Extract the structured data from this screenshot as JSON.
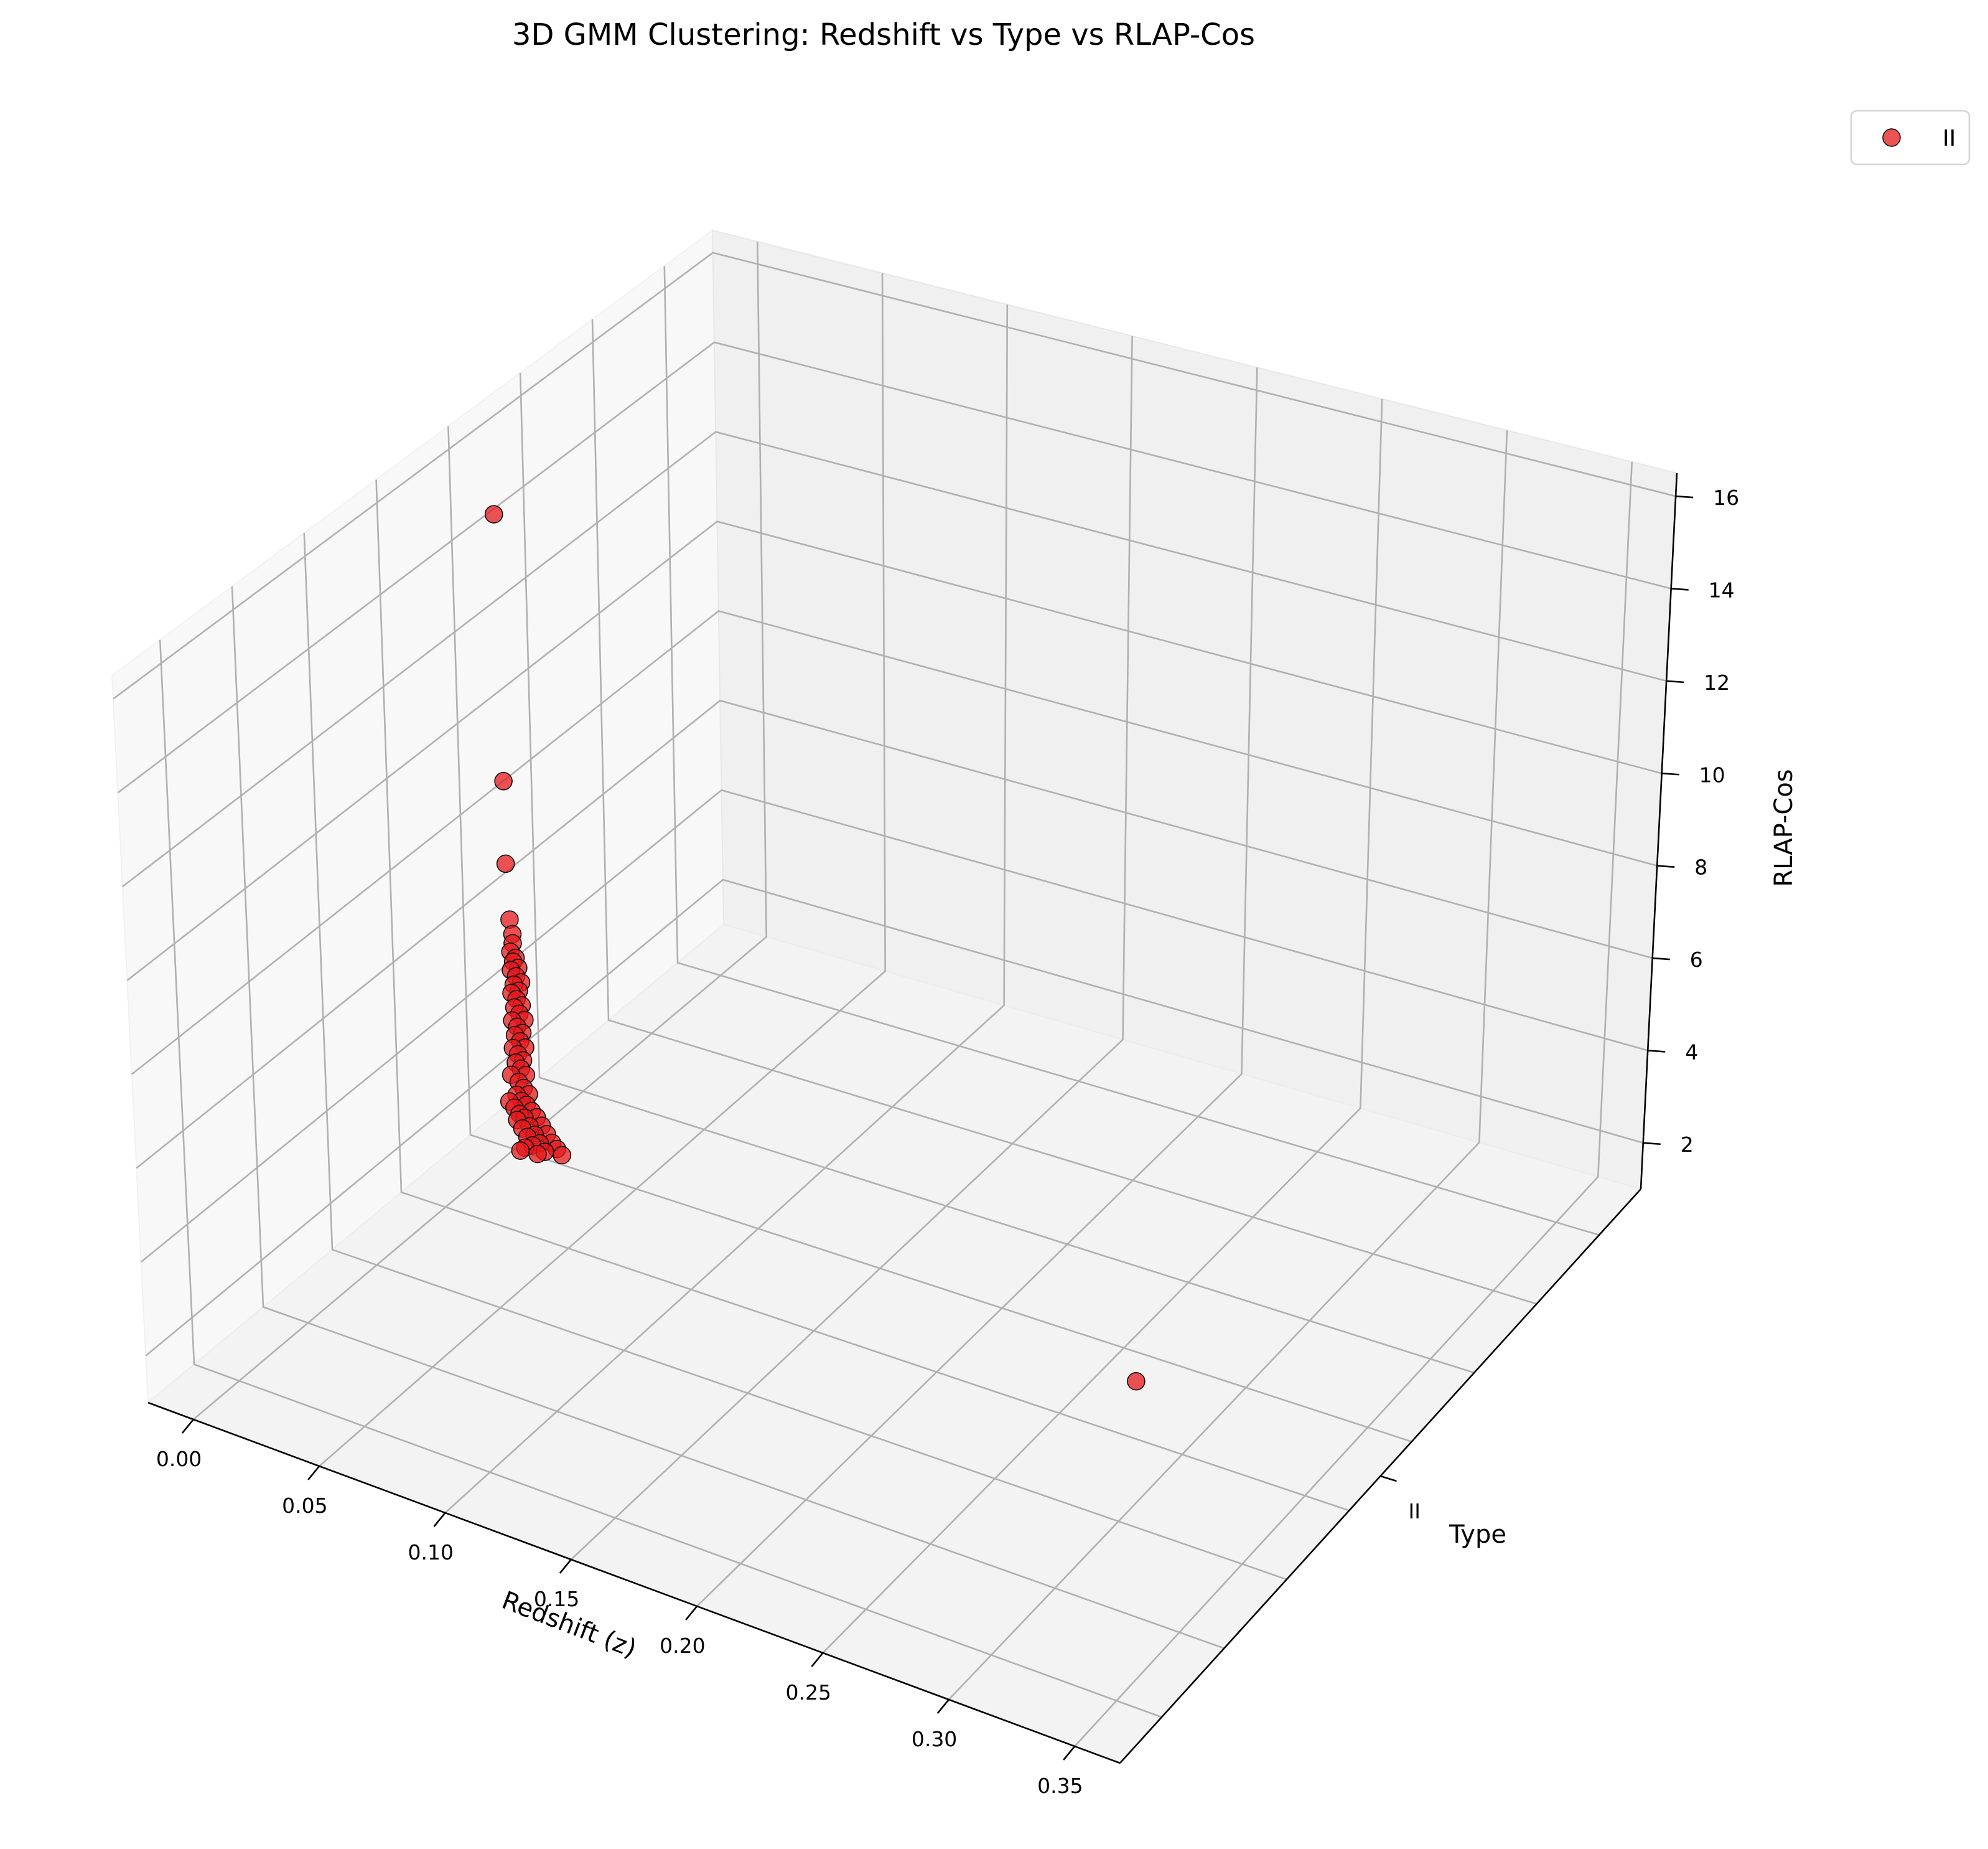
{
  "chart_data": {
    "type": "scatter",
    "projection": "3d",
    "title": "3D GMM Clustering: Redshift vs Type vs RLAP-Cos",
    "xlabel": "Redshift (z)",
    "ylabel": "Type",
    "zlabel": "RLAP-Cos",
    "x_ticks": [
      "0.00",
      "0.05",
      "0.10",
      "0.15",
      "0.20",
      "0.25",
      "0.30",
      "0.35"
    ],
    "y_ticks": [
      "II"
    ],
    "z_ticks": [
      "2",
      "4",
      "6",
      "8",
      "10",
      "12",
      "14",
      "16"
    ],
    "xlim": [
      -0.018,
      0.368
    ],
    "zlim": [
      1.0,
      16.5
    ],
    "grid": true,
    "legend": {
      "placement": "upper-right-outside",
      "entries": [
        "II"
      ]
    },
    "series": [
      {
        "name": "II",
        "color": "#e41a1c",
        "edgecolor": "#000000",
        "y": "II",
        "points": [
          [
            0.013,
            15.7
          ],
          [
            0.014,
            9.9
          ],
          [
            0.014,
            8.1
          ],
          [
            0.015,
            6.9
          ],
          [
            0.016,
            6.6
          ],
          [
            0.016,
            6.4
          ],
          [
            0.015,
            6.2
          ],
          [
            0.017,
            6.1
          ],
          [
            0.016,
            6.0
          ],
          [
            0.018,
            5.9
          ],
          [
            0.015,
            5.8
          ],
          [
            0.017,
            5.7
          ],
          [
            0.019,
            5.6
          ],
          [
            0.016,
            5.5
          ],
          [
            0.018,
            5.4
          ],
          [
            0.015,
            5.3
          ],
          [
            0.017,
            5.2
          ],
          [
            0.019,
            5.1
          ],
          [
            0.016,
            5.0
          ],
          [
            0.018,
            4.9
          ],
          [
            0.02,
            4.8
          ],
          [
            0.015,
            4.7
          ],
          [
            0.017,
            4.6
          ],
          [
            0.019,
            4.5
          ],
          [
            0.016,
            4.4
          ],
          [
            0.018,
            4.3
          ],
          [
            0.02,
            4.2
          ],
          [
            0.015,
            4.1
          ],
          [
            0.017,
            4.0
          ],
          [
            0.019,
            3.9
          ],
          [
            0.016,
            3.8
          ],
          [
            0.018,
            3.7
          ],
          [
            0.02,
            3.6
          ],
          [
            0.014,
            3.5
          ],
          [
            0.017,
            3.4
          ],
          [
            0.019,
            3.3
          ],
          [
            0.021,
            3.2
          ],
          [
            0.016,
            3.1
          ],
          [
            0.018,
            3.0
          ],
          [
            0.02,
            2.95
          ],
          [
            0.013,
            2.9
          ],
          [
            0.022,
            2.85
          ],
          [
            0.015,
            2.8
          ],
          [
            0.024,
            2.75
          ],
          [
            0.017,
            2.7
          ],
          [
            0.019,
            2.65
          ],
          [
            0.026,
            2.6
          ],
          [
            0.016,
            2.55
          ],
          [
            0.021,
            2.5
          ],
          [
            0.028,
            2.45
          ],
          [
            0.018,
            2.4
          ],
          [
            0.023,
            2.35
          ],
          [
            0.03,
            2.3
          ],
          [
            0.02,
            2.25
          ],
          [
            0.025,
            2.2
          ],
          [
            0.032,
            2.2
          ],
          [
            0.022,
            2.1
          ],
          [
            0.019,
            2.0
          ],
          [
            0.027,
            2.05
          ],
          [
            0.017,
            1.9
          ],
          [
            0.024,
            1.95
          ],
          [
            0.034,
            2.1
          ],
          [
            0.268,
            1.3
          ]
        ]
      }
    ]
  }
}
